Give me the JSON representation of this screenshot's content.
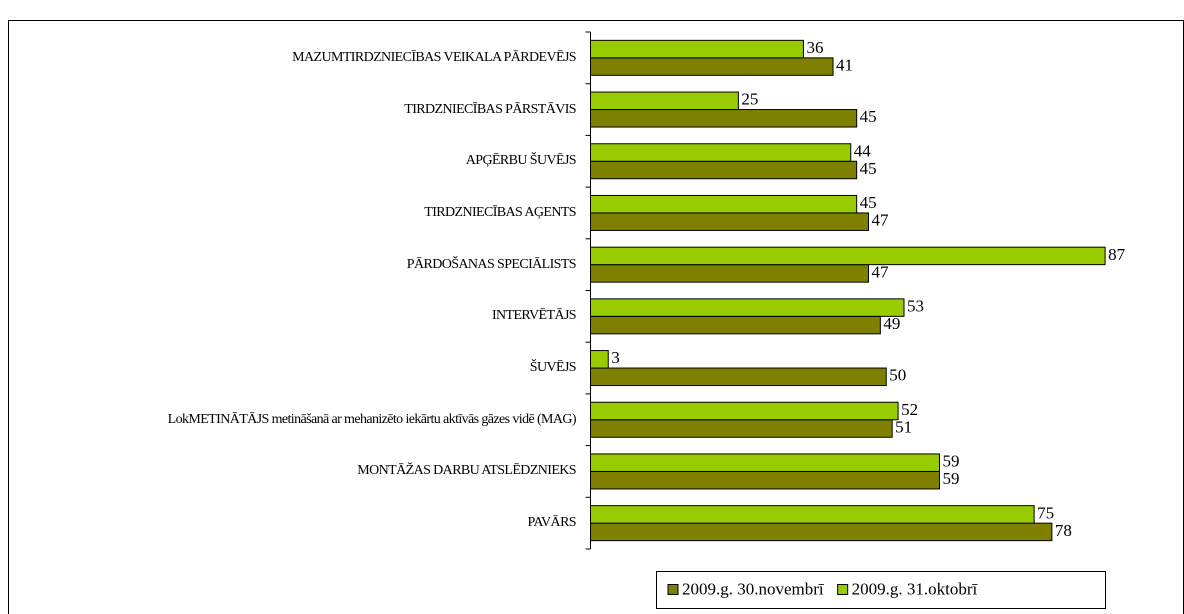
{
  "chart_data": {
    "type": "bar",
    "orientation": "horizontal",
    "categories": [
      "MAZUMTIRDZNIECĪBAS VEIKALA PĀRDEVĒJS",
      "TIRDZNIECĪBAS PĀRSTĀVIS",
      "APĢĒRBU ŠUVĒJS",
      "TIRDZNIECĪBAS AĢENTS",
      "PĀRDOŠANAS SPECIĀLISTS",
      "INTERVĒTĀJS",
      "ŠUVĒJS",
      "LokMETINĀTĀJS metināšanā ar mehanizēto iekārtu aktīvās gāzes vidē (MAG)",
      "MONTĀŽAS DARBU ATSLĒDZNIEKS",
      "PAVĀRS"
    ],
    "series": [
      {
        "name": "2009.g. 30.novembrī",
        "color": "#808000",
        "values": [
          41,
          45,
          45,
          47,
          47,
          49,
          50,
          51,
          59,
          78
        ]
      },
      {
        "name": "2009.g. 31.oktobrī",
        "color": "#99cc00",
        "values": [
          36,
          25,
          44,
          45,
          87,
          53,
          3,
          52,
          59,
          75
        ]
      }
    ],
    "xlim": [
      0,
      100
    ],
    "legend": "bottom-right"
  }
}
